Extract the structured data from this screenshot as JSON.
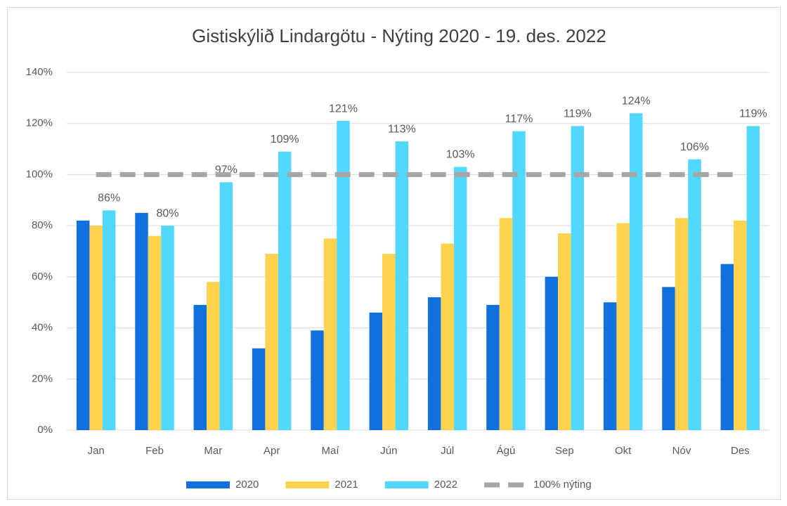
{
  "chart_data": {
    "type": "bar",
    "title": "Gistiskýlið Lindargötu - Nýting 2020 - 19. des. 2022",
    "categories": [
      "Jan",
      "Feb",
      "Mar",
      "Apr",
      "Maí",
      "Jún",
      "Júl",
      "Ágú",
      "Sep",
      "Okt",
      "Nóv",
      "Des"
    ],
    "series": [
      {
        "name": "2020",
        "color": "#1070dc",
        "values": [
          82,
          85,
          49,
          32,
          39,
          46,
          52,
          49,
          60,
          50,
          56,
          65
        ]
      },
      {
        "name": "2021",
        "color": "#ffd350",
        "values": [
          80,
          76,
          58,
          69,
          75,
          69,
          73,
          83,
          77,
          81,
          83,
          82
        ]
      },
      {
        "name": "2022",
        "color": "#52d8ff",
        "values": [
          86,
          80,
          97,
          109,
          121,
          113,
          103,
          117,
          119,
          124,
          106,
          119
        ],
        "value_labels": [
          "86%",
          "80%",
          "97%",
          "109%",
          "121%",
          "113%",
          "103%",
          "117%",
          "119%",
          "124%",
          "106%",
          "119%"
        ]
      },
      {
        "name": "100% nýting",
        "type": "line",
        "dashed": true,
        "color": "#a6a6a6",
        "values": [
          100,
          100,
          100,
          100,
          100,
          100,
          100,
          100,
          100,
          100,
          100,
          100
        ]
      }
    ],
    "ylim": [
      0,
      140
    ],
    "yticks": [
      {
        "value": 0,
        "label": "0%"
      },
      {
        "value": 20,
        "label": "20%"
      },
      {
        "value": 40,
        "label": "40%"
      },
      {
        "value": 60,
        "label": "60%"
      },
      {
        "value": 80,
        "label": "80%"
      },
      {
        "value": 100,
        "label": "100%"
      },
      {
        "value": 120,
        "label": "120%"
      },
      {
        "value": 140,
        "label": "140%"
      }
    ],
    "grid": true,
    "legend": "bottom"
  }
}
